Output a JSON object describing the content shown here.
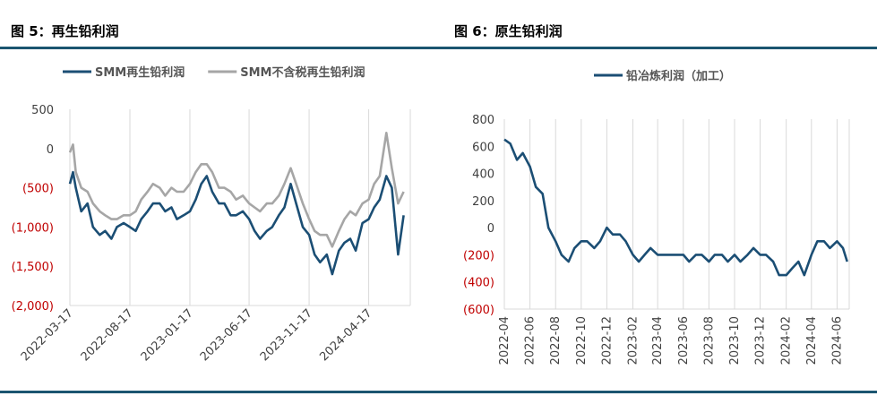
{
  "figures": {
    "left_title": "图 5：再生铅利润",
    "right_title": "图 6：原生铅利润"
  },
  "colors": {
    "navy": "#1b4e74",
    "gray": "#a6a6a6",
    "neg": "#c00000",
    "rule": "#1b5570"
  },
  "chart_data": [
    {
      "type": "line",
      "title": "",
      "x_type": "date",
      "xlim": [
        "2022-03-17",
        "2024-08-01"
      ],
      "x_ticks": [
        "2022-03-17",
        "2022-08-17",
        "2023-01-17",
        "2023-06-17",
        "2023-11-17",
        "2024-04-17"
      ],
      "ylim": [
        -2000,
        500
      ],
      "y_ticks": [
        500,
        0,
        -500,
        -1000,
        -1500,
        -2000
      ],
      "y_tick_labels": [
        "500",
        "0",
        "(500)",
        "(1,000)",
        "(1,500)",
        "(2,000)"
      ],
      "grid": "vertical",
      "legend": "top-center",
      "series": [
        {
          "name": "SMM再生铅利润",
          "color": "#1b4e74",
          "x": [
            "2022-03-17",
            "2022-03-25",
            "2022-04-01",
            "2022-04-15",
            "2022-05-01",
            "2022-05-15",
            "2022-06-01",
            "2022-06-15",
            "2022-07-01",
            "2022-07-15",
            "2022-08-01",
            "2022-08-17",
            "2022-09-01",
            "2022-09-15",
            "2022-10-01",
            "2022-10-15",
            "2022-11-01",
            "2022-11-15",
            "2022-12-01",
            "2022-12-15",
            "2023-01-01",
            "2023-01-17",
            "2023-02-01",
            "2023-02-15",
            "2023-03-01",
            "2023-03-15",
            "2023-04-01",
            "2023-04-15",
            "2023-05-01",
            "2023-05-15",
            "2023-06-01",
            "2023-06-17",
            "2023-07-01",
            "2023-07-15",
            "2023-08-01",
            "2023-08-15",
            "2023-09-01",
            "2023-09-15",
            "2023-10-01",
            "2023-10-15",
            "2023-11-01",
            "2023-11-17",
            "2023-12-01",
            "2023-12-15",
            "2024-01-01",
            "2024-01-15",
            "2024-02-01",
            "2024-02-15",
            "2024-03-01",
            "2024-03-15",
            "2024-04-01",
            "2024-04-17",
            "2024-05-01",
            "2024-05-15",
            "2024-06-01",
            "2024-06-15",
            "2024-07-01",
            "2024-07-15"
          ],
          "y": [
            -450,
            -300,
            -500,
            -800,
            -700,
            -1000,
            -1100,
            -1050,
            -1150,
            -1000,
            -950,
            -1000,
            -1050,
            -900,
            -800,
            -700,
            -700,
            -800,
            -750,
            -900,
            -850,
            -800,
            -650,
            -450,
            -350,
            -550,
            -700,
            -700,
            -850,
            -850,
            -800,
            -900,
            -1050,
            -1150,
            -1050,
            -1000,
            -850,
            -750,
            -450,
            -700,
            -1000,
            -1100,
            -1350,
            -1450,
            -1350,
            -1600,
            -1300,
            -1200,
            -1150,
            -1300,
            -950,
            -900,
            -750,
            -650,
            -350,
            -500,
            -1350,
            -850
          ]
        },
        {
          "name": "SMM不含税再生铅利润",
          "color": "#a6a6a6",
          "x": [
            "2022-03-17",
            "2022-03-25",
            "2022-04-01",
            "2022-04-15",
            "2022-05-01",
            "2022-05-15",
            "2022-06-01",
            "2022-06-15",
            "2022-07-01",
            "2022-07-15",
            "2022-08-01",
            "2022-08-17",
            "2022-09-01",
            "2022-09-15",
            "2022-10-01",
            "2022-10-15",
            "2022-11-01",
            "2022-11-15",
            "2022-12-01",
            "2022-12-15",
            "2023-01-01",
            "2023-01-17",
            "2023-02-01",
            "2023-02-15",
            "2023-03-01",
            "2023-03-15",
            "2023-04-01",
            "2023-04-15",
            "2023-05-01",
            "2023-05-15",
            "2023-06-01",
            "2023-06-17",
            "2023-07-01",
            "2023-07-15",
            "2023-08-01",
            "2023-08-15",
            "2023-09-01",
            "2023-09-15",
            "2023-10-01",
            "2023-10-15",
            "2023-11-01",
            "2023-11-17",
            "2023-12-01",
            "2023-12-15",
            "2024-01-01",
            "2024-01-15",
            "2024-02-01",
            "2024-02-15",
            "2024-03-01",
            "2024-03-15",
            "2024-04-01",
            "2024-04-17",
            "2024-05-01",
            "2024-05-15",
            "2024-06-01",
            "2024-06-15",
            "2024-07-01",
            "2024-07-15"
          ],
          "y": [
            -50,
            50,
            -300,
            -500,
            -550,
            -700,
            -800,
            -850,
            -900,
            -900,
            -850,
            -850,
            -800,
            -650,
            -550,
            -450,
            -500,
            -600,
            -500,
            -550,
            -550,
            -450,
            -300,
            -200,
            -200,
            -300,
            -500,
            -500,
            -550,
            -650,
            -600,
            -700,
            -750,
            -800,
            -700,
            -700,
            -600,
            -450,
            -250,
            -450,
            -700,
            -900,
            -1050,
            -1100,
            -1100,
            -1250,
            -1050,
            -900,
            -800,
            -850,
            -700,
            -650,
            -450,
            -350,
            200,
            -250,
            -700,
            -550
          ]
        }
      ]
    },
    {
      "type": "line",
      "title": "",
      "x_type": "date",
      "xlim": [
        "2022-04-01",
        "2024-06-30"
      ],
      "x_ticks": [
        "2022-04",
        "2022-06",
        "2022-08",
        "2022-10",
        "2022-12",
        "2023-02",
        "2023-04",
        "2023-06",
        "2023-08",
        "2023-10",
        "2023-12",
        "2024-02",
        "2024-04",
        "2024-06"
      ],
      "ylim": [
        -600,
        800
      ],
      "y_ticks": [
        800,
        600,
        400,
        200,
        0,
        -200,
        -400,
        -600
      ],
      "y_tick_labels": [
        "800",
        "600",
        "400",
        "200",
        "0",
        "(200)",
        "(400)",
        "(600)"
      ],
      "grid": "vertical",
      "legend": "top-center",
      "series": [
        {
          "name": "铅冶炼利润（加工）",
          "color": "#1b4e74",
          "x": [
            "2022-04-01",
            "2022-04-15",
            "2022-05-01",
            "2022-05-15",
            "2022-06-01",
            "2022-06-15",
            "2022-07-01",
            "2022-07-15",
            "2022-08-01",
            "2022-08-15",
            "2022-09-01",
            "2022-09-15",
            "2022-10-01",
            "2022-10-15",
            "2022-11-01",
            "2022-11-15",
            "2022-12-01",
            "2022-12-15",
            "2023-01-01",
            "2023-01-15",
            "2023-02-01",
            "2023-02-15",
            "2023-03-01",
            "2023-03-15",
            "2023-04-01",
            "2023-04-15",
            "2023-05-01",
            "2023-05-15",
            "2023-06-01",
            "2023-06-15",
            "2023-07-01",
            "2023-07-15",
            "2023-08-01",
            "2023-08-15",
            "2023-09-01",
            "2023-09-15",
            "2023-10-01",
            "2023-10-15",
            "2023-11-01",
            "2023-11-15",
            "2023-12-01",
            "2023-12-15",
            "2024-01-01",
            "2024-01-15",
            "2024-02-01",
            "2024-02-15",
            "2024-03-01",
            "2024-03-15",
            "2024-04-01",
            "2024-04-15",
            "2024-05-01",
            "2024-05-15",
            "2024-06-01",
            "2024-06-15",
            "2024-06-25"
          ],
          "y": [
            650,
            620,
            500,
            550,
            450,
            300,
            250,
            0,
            -100,
            -200,
            -250,
            -150,
            -100,
            -100,
            -150,
            -100,
            0,
            -50,
            -50,
            -100,
            -200,
            -250,
            -200,
            -150,
            -200,
            -200,
            -200,
            -200,
            -200,
            -250,
            -200,
            -200,
            -250,
            -200,
            -200,
            -250,
            -200,
            -250,
            -200,
            -150,
            -200,
            -200,
            -250,
            -350,
            -350,
            -300,
            -250,
            -350,
            -200,
            -100,
            -100,
            -150,
            -100,
            -150,
            -250
          ]
        }
      ]
    }
  ]
}
